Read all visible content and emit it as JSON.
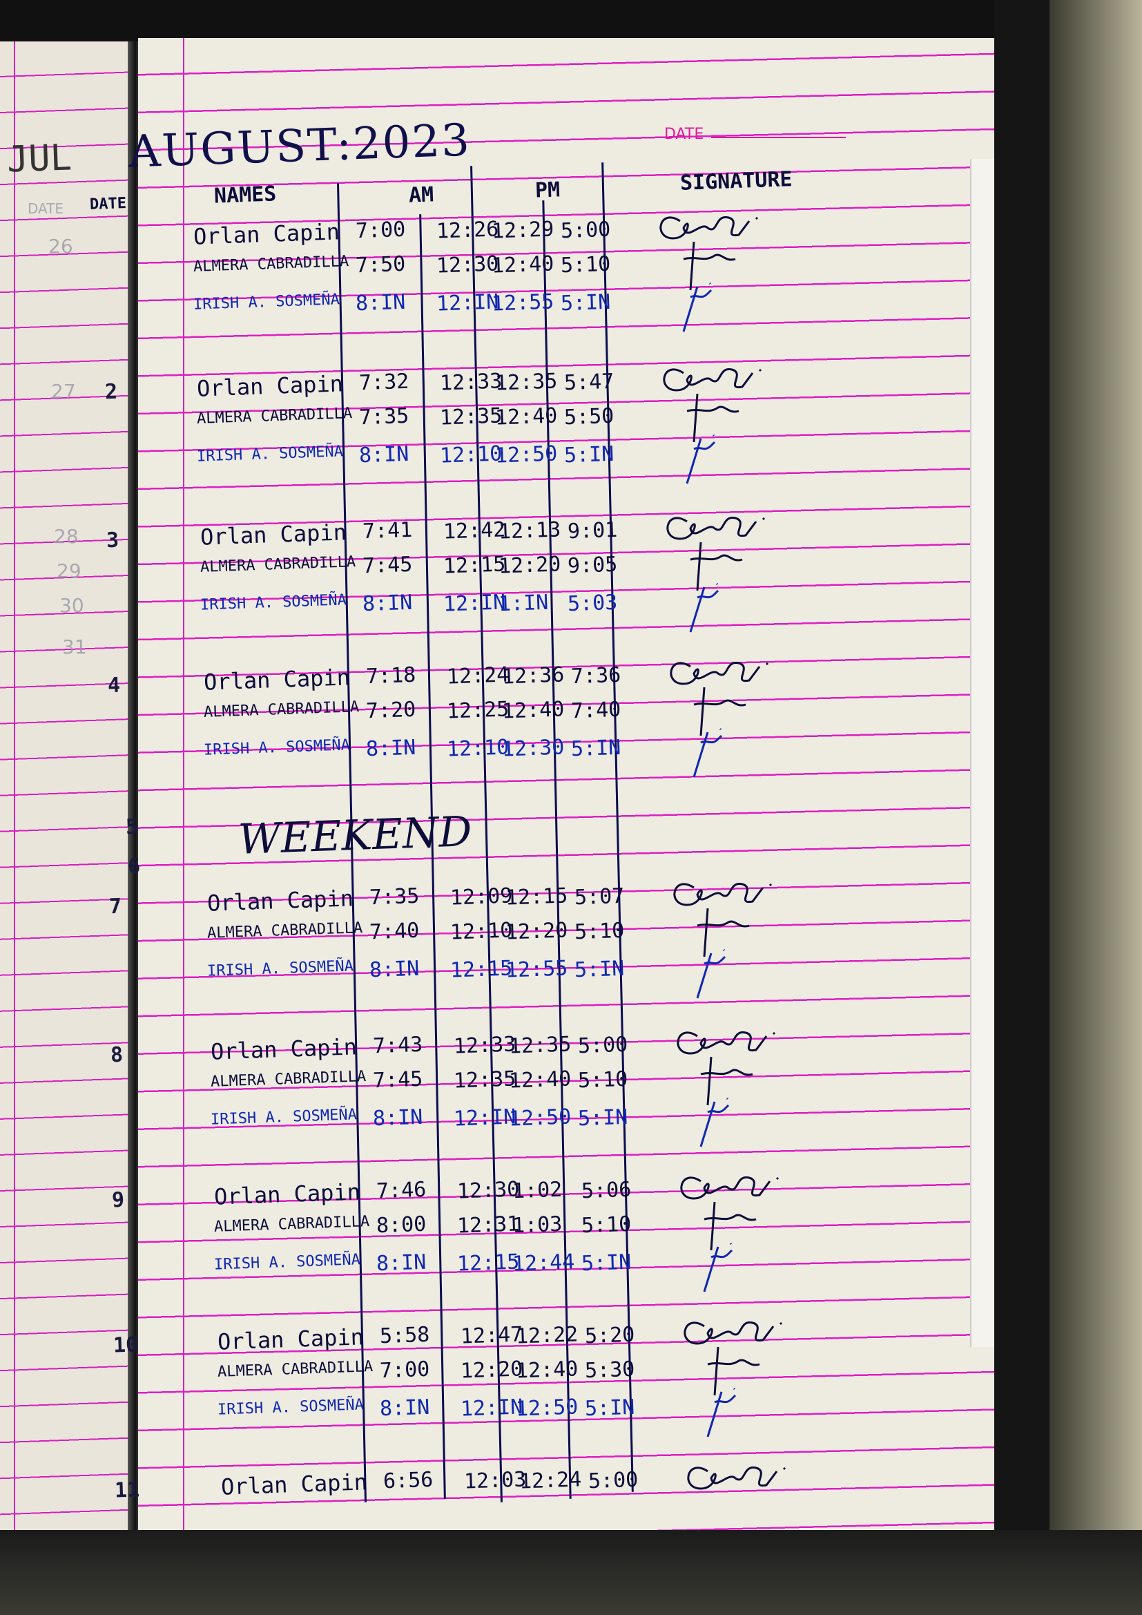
{
  "left_page": {
    "month": "JUL",
    "header": "DATE",
    "days": [
      "26",
      "27",
      "28",
      "29",
      "30",
      "31"
    ]
  },
  "header": {
    "title": "AUGUST:2023",
    "date_label": "DATE"
  },
  "columns": {
    "date": "DATE",
    "names": "NAMES",
    "am": "AM",
    "pm": "PM",
    "signature": "SIGNATURE"
  },
  "colors": {
    "rule_line": "#dd1fc4",
    "black_ink": "#0d0d3a",
    "blue_ink": "#1028b0",
    "paper": "#eeebe1"
  },
  "entries": [
    {
      "day": "",
      "rows": [
        {
          "name": "Orlan Capin",
          "times": [
            "7:00",
            "12:26",
            "12:29",
            "5:00"
          ],
          "ink": "black"
        },
        {
          "name": "ALMERA CABRADILLA",
          "times": [
            "7:50",
            "12:30",
            "12:40",
            "5:10"
          ],
          "ink": "black"
        },
        {
          "name": "IRISH A. SOSMEÑA",
          "times": [
            "8:IN",
            "12:IN",
            "12:55",
            "5:IN"
          ],
          "ink": "blue"
        }
      ]
    },
    {
      "day": "2",
      "rows": [
        {
          "name": "Orlan Capin",
          "times": [
            "7:32",
            "12:33",
            "12:35",
            "5:47"
          ],
          "ink": "black"
        },
        {
          "name": "ALMERA CABRADILLA",
          "times": [
            "7:35",
            "12:35",
            "12:40",
            "5:50"
          ],
          "ink": "black"
        },
        {
          "name": "IRISH A. SOSMEÑA",
          "times": [
            "8:IN",
            "12:10",
            "12:50",
            "5:IN"
          ],
          "ink": "blue"
        }
      ]
    },
    {
      "day": "3",
      "rows": [
        {
          "name": "Orlan Capin",
          "times": [
            "7:41",
            "12:42",
            "12:13",
            "9:01"
          ],
          "ink": "black"
        },
        {
          "name": "ALMERA CABRADILLA",
          "times": [
            "7:45",
            "12:15",
            "12:20",
            "9:05"
          ],
          "ink": "black"
        },
        {
          "name": "IRISH A. SOSMEÑA",
          "times": [
            "8:IN",
            "12:IN",
            "1:IN",
            "5:03"
          ],
          "ink": "blue"
        }
      ]
    },
    {
      "day": "4",
      "rows": [
        {
          "name": "Orlan Capin",
          "times": [
            "7:18",
            "12:24",
            "12:36",
            "7:36"
          ],
          "ink": "black"
        },
        {
          "name": "ALMERA CABRADILLA",
          "times": [
            "7:20",
            "12:25",
            "12:40",
            "7:40"
          ],
          "ink": "black"
        },
        {
          "name": "IRISH A. SOSMEÑA",
          "times": [
            "8:IN",
            "12:10",
            "12:30",
            "5:IN"
          ],
          "ink": "blue"
        }
      ]
    },
    {
      "day": "7",
      "rows": [
        {
          "name": "Orlan Capin",
          "times": [
            "7:35",
            "12:09",
            "12:15",
            "5:07"
          ],
          "ink": "black"
        },
        {
          "name": "ALMERA CABRADILLA",
          "times": [
            "7:40",
            "12:10",
            "12:20",
            "5:10"
          ],
          "ink": "black"
        },
        {
          "name": "IRISH A. SOSMEÑA",
          "times": [
            "8:IN",
            "12:15",
            "12:55",
            "5:IN"
          ],
          "ink": "blue"
        }
      ]
    },
    {
      "day": "8",
      "rows": [
        {
          "name": "Orlan Capin",
          "times": [
            "7:43",
            "12:33",
            "12:35",
            "5:00"
          ],
          "ink": "black"
        },
        {
          "name": "ALMERA CABRADILLA",
          "times": [
            "7:45",
            "12:35",
            "12:40",
            "5:10"
          ],
          "ink": "black"
        },
        {
          "name": "IRISH A. SOSMEÑA",
          "times": [
            "8:IN",
            "12:IN",
            "12:50",
            "5:IN"
          ],
          "ink": "blue"
        }
      ]
    },
    {
      "day": "9",
      "rows": [
        {
          "name": "Orlan Capin",
          "times": [
            "7:46",
            "12:30",
            "1:02",
            "5:06"
          ],
          "ink": "black"
        },
        {
          "name": "ALMERA CABRADILLA",
          "times": [
            "8:00",
            "12:31",
            "1:03",
            "5:10"
          ],
          "ink": "black"
        },
        {
          "name": "IRISH A. SOSMEÑA",
          "times": [
            "8:IN",
            "12:15",
            "12:44",
            "5:IN"
          ],
          "ink": "blue"
        }
      ]
    },
    {
      "day": "10",
      "rows": [
        {
          "name": "Orlan Capin",
          "times": [
            "5:58",
            "12:47",
            "12:22",
            "5:20"
          ],
          "ink": "black"
        },
        {
          "name": "ALMERA CABRADILLA",
          "times": [
            "7:00",
            "12:20",
            "12:40",
            "5:30"
          ],
          "ink": "black"
        },
        {
          "name": "IRISH A. SOSMEÑA",
          "times": [
            "8:IN",
            "12:IN",
            "12:50",
            "5:IN"
          ],
          "ink": "blue"
        }
      ]
    },
    {
      "day": "11",
      "rows": [
        {
          "name": "Orlan Capin",
          "times": [
            "6:56",
            "12:03",
            "12:24",
            "5:00"
          ],
          "ink": "black"
        }
      ]
    }
  ],
  "weekend": {
    "days": [
      "5",
      "6"
    ],
    "label": "WEEKEND"
  }
}
